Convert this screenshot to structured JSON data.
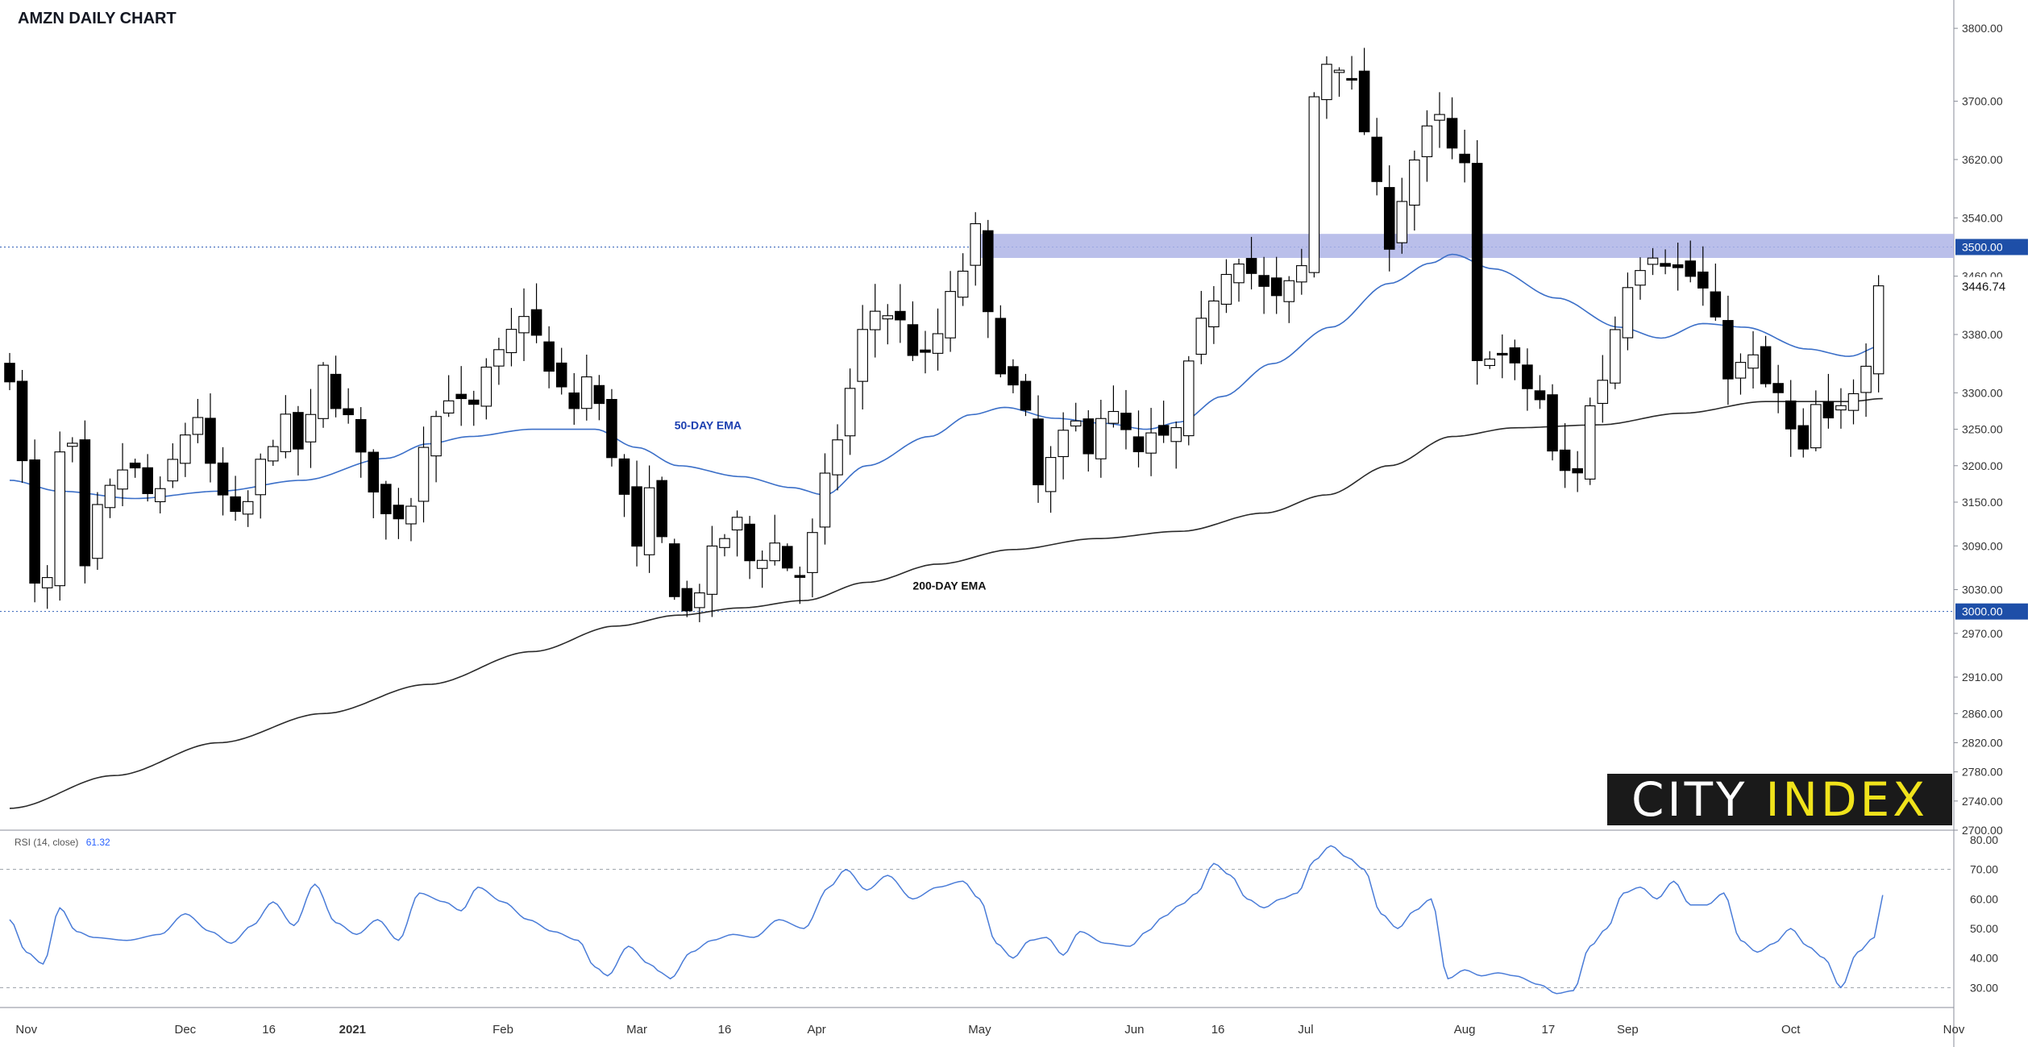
{
  "title": "AMZN DAILY CHART",
  "colors": {
    "ema50": "#3b6fc8",
    "ema200": "#2a2a2a",
    "rsi": "#4a7cd8",
    "resistance_zone": "#aeb4e6",
    "price_badge": "#1e4fa8",
    "candle_up": "#ffffff",
    "candle_down": "#000000"
  },
  "logo": {
    "word1": "CITY",
    "word2": "INDEX"
  },
  "chart_data": [
    {
      "type": "candlestick",
      "title": "AMZN DAILY CHART",
      "ylim": [
        2700,
        3830
      ],
      "y_ticks": [
        "3800.00",
        "3700.00",
        "3620.00",
        "3540.00",
        "3460.00",
        "3380.00",
        "3300.00",
        "3250.00",
        "3200.00",
        "3150.00",
        "3090.00",
        "3030.00",
        "2970.00",
        "2910.00",
        "2860.00",
        "2820.00",
        "2780.00",
        "2740.00",
        "2700.00"
      ],
      "y_tick_values": [
        3800,
        3700,
        3620,
        3540,
        3460,
        3380,
        3300,
        3250,
        3200,
        3150,
        3090,
        3030,
        2970,
        2910,
        2860,
        2820,
        2780,
        2740,
        2700
      ],
      "x_ticks": [
        "Nov",
        "Dec",
        "16",
        "2021",
        "Feb",
        "Mar",
        "16",
        "Apr",
        "May",
        "Jun",
        "16",
        "Jul",
        "Aug",
        "17",
        "Sep",
        "Oct",
        "Nov"
      ],
      "x_tick_index": [
        4,
        42,
        62,
        82,
        118,
        150,
        171,
        193,
        232,
        269,
        289,
        310,
        348,
        368,
        387,
        426,
        465
      ],
      "last_price_label": "3446.74",
      "last_price": 3446.74,
      "horizontal_lines": [
        {
          "label": "3500.00",
          "value": 3500
        },
        {
          "label": "3000.00",
          "value": 3000
        }
      ],
      "resistance_zone": [
        3485,
        3518
      ],
      "resistance_zone_index": [
        230,
        465
      ],
      "annotations": [
        {
          "text": "50-DAY EMA",
          "index": 159,
          "value": 3250
        },
        {
          "text": "200-DAY EMA",
          "index": 216,
          "value": 3030
        }
      ],
      "ema50_keys": [
        [
          0,
          3180
        ],
        [
          12,
          3165
        ],
        [
          30,
          3155
        ],
        [
          50,
          3165
        ],
        [
          70,
          3180
        ],
        [
          90,
          3210
        ],
        [
          100,
          3230
        ],
        [
          110,
          3240
        ],
        [
          125,
          3250
        ],
        [
          140,
          3250
        ],
        [
          150,
          3225
        ],
        [
          160,
          3200
        ],
        [
          175,
          3185
        ],
        [
          187,
          3170
        ],
        [
          195,
          3160
        ],
        [
          205,
          3200
        ],
        [
          220,
          3240
        ],
        [
          230,
          3270
        ],
        [
          238,
          3280
        ],
        [
          250,
          3265
        ],
        [
          262,
          3258
        ],
        [
          272,
          3250
        ],
        [
          280,
          3260
        ],
        [
          290,
          3295
        ],
        [
          302,
          3340
        ],
        [
          316,
          3390
        ],
        [
          330,
          3450
        ],
        [
          340,
          3478
        ],
        [
          345,
          3490
        ],
        [
          355,
          3470
        ],
        [
          370,
          3430
        ],
        [
          385,
          3390
        ],
        [
          395,
          3375
        ],
        [
          405,
          3395
        ],
        [
          415,
          3390
        ],
        [
          430,
          3360
        ],
        [
          440,
          3350
        ],
        [
          448,
          3365
        ]
      ],
      "ema200_keys": [
        [
          0,
          2730
        ],
        [
          25,
          2775
        ],
        [
          50,
          2820
        ],
        [
          75,
          2860
        ],
        [
          100,
          2900
        ],
        [
          125,
          2945
        ],
        [
          145,
          2980
        ],
        [
          160,
          2995
        ],
        [
          175,
          3005
        ],
        [
          190,
          3015
        ],
        [
          205,
          3040
        ],
        [
          222,
          3065
        ],
        [
          240,
          3085
        ],
        [
          260,
          3100
        ],
        [
          280,
          3110
        ],
        [
          300,
          3135
        ],
        [
          315,
          3160
        ],
        [
          330,
          3200
        ],
        [
          345,
          3240
        ],
        [
          360,
          3252
        ],
        [
          380,
          3256
        ],
        [
          400,
          3272
        ],
        [
          420,
          3288
        ],
        [
          440,
          3288
        ],
        [
          448,
          3292
        ]
      ],
      "price_keys": [
        [
          0,
          3330
        ],
        [
          3,
          3200
        ],
        [
          7,
          3000
        ],
        [
          10,
          3050
        ],
        [
          13,
          3270
        ],
        [
          16,
          3200
        ],
        [
          18,
          3050
        ],
        [
          22,
          3150
        ],
        [
          28,
          3200
        ],
        [
          35,
          3150
        ],
        [
          40,
          3210
        ],
        [
          44,
          3280
        ],
        [
          50,
          3160
        ],
        [
          55,
          3120
        ],
        [
          60,
          3200
        ],
        [
          65,
          3260
        ],
        [
          70,
          3220
        ],
        [
          75,
          3330
        ],
        [
          80,
          3270
        ],
        [
          85,
          3200
        ],
        [
          90,
          3130
        ],
        [
          95,
          3140
        ],
        [
          100,
          3250
        ],
        [
          105,
          3300
        ],
        [
          110,
          3270
        ],
        [
          115,
          3330
        ],
        [
          120,
          3380
        ],
        [
          124,
          3420
        ],
        [
          128,
          3330
        ],
        [
          132,
          3300
        ],
        [
          135,
          3280
        ],
        [
          138,
          3320
        ],
        [
          142,
          3270
        ],
        [
          146,
          3170
        ],
        [
          150,
          3080
        ],
        [
          154,
          3170
        ],
        [
          157,
          3070
        ],
        [
          160,
          3020
        ],
        [
          163,
          2990
        ],
        [
          166,
          3050
        ],
        [
          170,
          3100
        ],
        [
          174,
          3120
        ],
        [
          178,
          3060
        ],
        [
          182,
          3100
        ],
        [
          185,
          3070
        ],
        [
          188,
          3040
        ],
        [
          192,
          3100
        ],
        [
          196,
          3190
        ],
        [
          200,
          3290
        ],
        [
          204,
          3380
        ],
        [
          208,
          3420
        ],
        [
          212,
          3400
        ],
        [
          216,
          3360
        ],
        [
          220,
          3340
        ],
        [
          224,
          3420
        ],
        [
          228,
          3470
        ],
        [
          231,
          3520
        ],
        [
          234,
          3400
        ],
        [
          238,
          3330
        ],
        [
          242,
          3280
        ],
        [
          246,
          3170
        ],
        [
          250,
          3210
        ],
        [
          254,
          3260
        ],
        [
          258,
          3230
        ],
        [
          262,
          3280
        ],
        [
          266,
          3250
        ],
        [
          270,
          3210
        ],
        [
          274,
          3240
        ],
        [
          278,
          3230
        ],
        [
          282,
          3330
        ],
        [
          286,
          3400
        ],
        [
          290,
          3470
        ],
        [
          294,
          3490
        ],
        [
          298,
          3460
        ],
        [
          302,
          3420
        ],
        [
          305,
          3440
        ],
        [
          309,
          3470
        ],
        [
          313,
          3750
        ],
        [
          317,
          3760
        ],
        [
          321,
          3720
        ],
        [
          325,
          3650
        ],
        [
          329,
          3500
        ],
        [
          333,
          3570
        ],
        [
          337,
          3630
        ],
        [
          341,
          3680
        ],
        [
          345,
          3630
        ],
        [
          349,
          3600
        ],
        [
          350,
          3330
        ],
        [
          354,
          3360
        ],
        [
          358,
          3350
        ],
        [
          362,
          3310
        ],
        [
          366,
          3290
        ],
        [
          370,
          3200
        ],
        [
          374,
          3180
        ],
        [
          378,
          3280
        ],
        [
          382,
          3330
        ],
        [
          386,
          3450
        ],
        [
          390,
          3480
        ],
        [
          394,
          3500
        ],
        [
          398,
          3470
        ],
        [
          402,
          3460
        ],
        [
          405,
          3440
        ],
        [
          408,
          3390
        ],
        [
          412,
          3320
        ],
        [
          416,
          3350
        ],
        [
          420,
          3310
        ],
        [
          424,
          3290
        ],
        [
          428,
          3200
        ],
        [
          432,
          3280
        ],
        [
          436,
          3250
        ],
        [
          440,
          3300
        ],
        [
          444,
          3350
        ],
        [
          448,
          3446.74
        ]
      ]
    },
    {
      "type": "line",
      "title": "RSI (14, close)",
      "legend_label": "RSI (14, close)",
      "last_value_label": "61.32",
      "ylim": [
        26,
        80
      ],
      "y_ticks": [
        "80.00",
        "70.00",
        "60.00",
        "50.00",
        "40.00",
        "30.00"
      ],
      "y_tick_values": [
        80,
        70,
        60,
        50,
        40,
        30
      ],
      "dashed_levels": [
        70,
        30
      ],
      "rsi_keys": [
        [
          0,
          53
        ],
        [
          4,
          42
        ],
        [
          8,
          38
        ],
        [
          12,
          57
        ],
        [
          16,
          49
        ],
        [
          20,
          47
        ],
        [
          28,
          46
        ],
        [
          36,
          48
        ],
        [
          42,
          55
        ],
        [
          48,
          49
        ],
        [
          53,
          45
        ],
        [
          58,
          51
        ],
        [
          63,
          59
        ],
        [
          68,
          51
        ],
        [
          73,
          65
        ],
        [
          78,
          52
        ],
        [
          83,
          48
        ],
        [
          88,
          53
        ],
        [
          93,
          46
        ],
        [
          98,
          62
        ],
        [
          104,
          59
        ],
        [
          108,
          56
        ],
        [
          112,
          64
        ],
        [
          118,
          59
        ],
        [
          124,
          53
        ],
        [
          130,
          49
        ],
        [
          136,
          46
        ],
        [
          140,
          37
        ],
        [
          143,
          34
        ],
        [
          148,
          44
        ],
        [
          153,
          38
        ],
        [
          156,
          35
        ],
        [
          158,
          33
        ],
        [
          163,
          42
        ],
        [
          168,
          46
        ],
        [
          173,
          48
        ],
        [
          178,
          47
        ],
        [
          184,
          53
        ],
        [
          190,
          50
        ],
        [
          196,
          64
        ],
        [
          200,
          70
        ],
        [
          205,
          63
        ],
        [
          210,
          68
        ],
        [
          216,
          60
        ],
        [
          222,
          64
        ],
        [
          228,
          66
        ],
        [
          232,
          60
        ],
        [
          236,
          45
        ],
        [
          240,
          40
        ],
        [
          244,
          46
        ],
        [
          248,
          47
        ],
        [
          252,
          41
        ],
        [
          256,
          49
        ],
        [
          262,
          45
        ],
        [
          268,
          44
        ],
        [
          272,
          49
        ],
        [
          276,
          54
        ],
        [
          280,
          58
        ],
        [
          284,
          62
        ],
        [
          288,
          72
        ],
        [
          292,
          68
        ],
        [
          296,
          60
        ],
        [
          300,
          57
        ],
        [
          304,
          60
        ],
        [
          308,
          62
        ],
        [
          312,
          73
        ],
        [
          316,
          78
        ],
        [
          320,
          74
        ],
        [
          324,
          70
        ],
        [
          328,
          55
        ],
        [
          332,
          50
        ],
        [
          336,
          56
        ],
        [
          340,
          60
        ],
        [
          344,
          33
        ],
        [
          348,
          36
        ],
        [
          352,
          34
        ],
        [
          356,
          35
        ],
        [
          360,
          34
        ],
        [
          366,
          31
        ],
        [
          370,
          28
        ],
        [
          374,
          29
        ],
        [
          378,
          44
        ],
        [
          382,
          50
        ],
        [
          386,
          62
        ],
        [
          390,
          64
        ],
        [
          394,
          60
        ],
        [
          398,
          66
        ],
        [
          402,
          58
        ],
        [
          406,
          58
        ],
        [
          410,
          62
        ],
        [
          414,
          46
        ],
        [
          418,
          42
        ],
        [
          422,
          45
        ],
        [
          426,
          50
        ],
        [
          430,
          44
        ],
        [
          434,
          40
        ],
        [
          438,
          30
        ],
        [
          442,
          42
        ],
        [
          446,
          47
        ],
        [
          448,
          61.32
        ]
      ]
    }
  ]
}
